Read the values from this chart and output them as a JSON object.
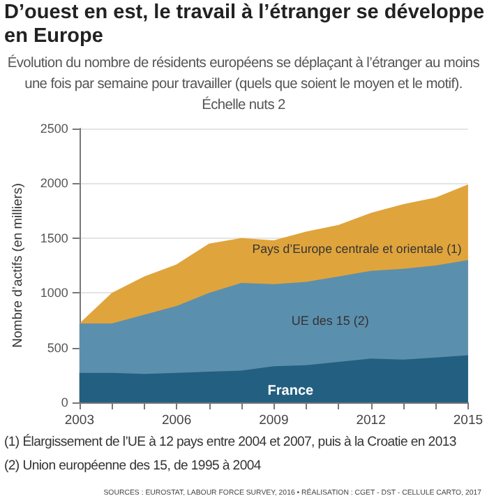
{
  "chart_data": {
    "type": "area",
    "stacked": true,
    "title": "D’ouest en est, le travail à l’étranger se développe en Europe",
    "subtitle": "Évolution du nombre de résidents européens se déplaçant à l’étranger au moins une fois par semaine pour travailler (quels que soient le moyen et le motif). Échelle nuts 2",
    "ylabel": "Nombre d’actifs (en milliers)",
    "x": [
      2003,
      2004,
      2005,
      2006,
      2007,
      2008,
      2009,
      2010,
      2011,
      2012,
      2013,
      2014,
      2015
    ],
    "series": [
      {
        "name": "France",
        "color": "#235f80",
        "values": [
          270,
          270,
          260,
          270,
          280,
          290,
          330,
          340,
          370,
          400,
          390,
          410,
          430
        ]
      },
      {
        "name": "UE des 15 (2)",
        "color": "#5b8fae",
        "values": [
          450,
          450,
          540,
          610,
          720,
          800,
          750,
          760,
          780,
          800,
          830,
          840,
          870
        ]
      },
      {
        "name": "Pays d’Europe centrale et orientale (1)",
        "color": "#e0a43c",
        "values": [
          0,
          280,
          350,
          380,
          450,
          410,
          400,
          460,
          470,
          530,
          590,
          620,
          690
        ]
      }
    ],
    "xlim": [
      2003,
      2015
    ],
    "xticks": [
      2003,
      {
        "value": 2004,
        "label": null
      },
      {
        "value": 2005,
        "label": null
      },
      2006,
      {
        "value": 2007,
        "label": null
      },
      {
        "value": 2008,
        "label": null
      },
      2009,
      {
        "value": 2010,
        "label": null
      },
      {
        "value": 2011,
        "label": null
      },
      2012,
      {
        "value": 2013,
        "label": null
      },
      {
        "value": 2014,
        "label": null
      },
      2015
    ],
    "ylim": [
      0,
      2500
    ],
    "yticks": [
      0,
      500,
      1000,
      1500,
      2000,
      2500
    ],
    "grid": "y",
    "legend": false,
    "annotations": [
      "(1) Élargissement de l’UE à 12 pays entre 2004 et 2007, puis à la Croatie en 2013",
      "(2) Union européenne des 15, de 1995 à 2004",
      "SOURCES : EUROSTAT, LABOUR FORCE SURVEY, 2016 • RÉALISATION : CGET - DST - CELLULE CARTO, 2017"
    ]
  }
}
